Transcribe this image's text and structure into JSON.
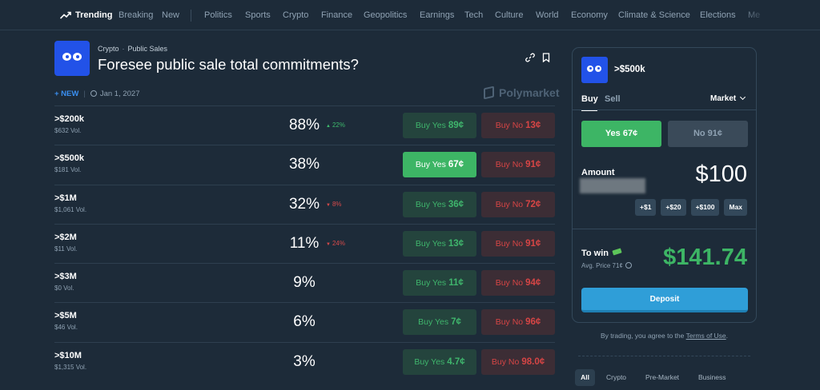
{
  "nav": {
    "trending": "Trending",
    "items": [
      "Breaking",
      "New",
      "Politics",
      "Sports",
      "Crypto",
      "Finance",
      "Geopolitics",
      "Earnings",
      "Tech",
      "Culture",
      "World",
      "Economy",
      "Climate & Science",
      "Elections",
      "Me"
    ]
  },
  "header": {
    "category": "Crypto",
    "subcategory": "Public Sales",
    "title": "Foresee public sale total commitments?",
    "new_badge": "+ NEW",
    "date": "Jan 1, 2027",
    "brand": "Polymarket"
  },
  "outcomes": [
    {
      "name": ">$200k",
      "volume": "$632 Vol.",
      "percent": "88%",
      "change": "22%",
      "change_dir": "up",
      "yes_label": "Buy Yes",
      "yes_price": "89¢",
      "no_label": "Buy No",
      "no_price": "13¢"
    },
    {
      "name": ">$500k",
      "volume": "$181 Vol.",
      "percent": "38%",
      "change": "",
      "change_dir": "",
      "yes_label": "Buy Yes",
      "yes_price": "67¢",
      "no_label": "Buy No",
      "no_price": "91¢"
    },
    {
      "name": ">$1M",
      "volume": "$1,061 Vol.",
      "percent": "32%",
      "change": "8%",
      "change_dir": "down",
      "yes_label": "Buy Yes",
      "yes_price": "36¢",
      "no_label": "Buy No",
      "no_price": "72¢"
    },
    {
      "name": ">$2M",
      "volume": "$11 Vol.",
      "percent": "11%",
      "change": "24%",
      "change_dir": "down",
      "yes_label": "Buy Yes",
      "yes_price": "13¢",
      "no_label": "Buy No",
      "no_price": "91¢"
    },
    {
      "name": ">$3M",
      "volume": "$0 Vol.",
      "percent": "9%",
      "change": "",
      "change_dir": "",
      "yes_label": "Buy Yes",
      "yes_price": "11¢",
      "no_label": "Buy No",
      "no_price": "94¢"
    },
    {
      "name": ">$5M",
      "volume": "$46 Vol.",
      "percent": "6%",
      "change": "",
      "change_dir": "",
      "yes_label": "Buy Yes",
      "yes_price": "7¢",
      "no_label": "Buy No",
      "no_price": "96¢"
    },
    {
      "name": ">$10M",
      "volume": "$1,315 Vol.",
      "percent": "3%",
      "change": "",
      "change_dir": "",
      "yes_label": "Buy Yes",
      "yes_price": "4.7¢",
      "no_label": "Buy No",
      "no_price": "98.0¢"
    }
  ],
  "selected_outcome_index": 1,
  "trade_panel": {
    "title": ">$500k",
    "tab_buy": "Buy",
    "tab_sell": "Sell",
    "order_type": "Market",
    "yes_button": "Yes 67¢",
    "no_button": "No 91¢",
    "amount_label": "Amount",
    "amount_value": "$100",
    "chips": [
      "+$1",
      "+$20",
      "+$100",
      "Max"
    ],
    "to_win_label": "To win",
    "avg_price": "Avg. Price 71¢",
    "to_win_value": "$141.74",
    "deposit_button": "Deposit"
  },
  "terms": {
    "prefix": "By trading, you agree to the",
    "link": "Terms of Use",
    "suffix": "."
  },
  "categories": [
    "All",
    "Crypto",
    "Pre-Market",
    "Business"
  ],
  "colors": {
    "background": "#1d2b39",
    "green": "#3db565",
    "red": "#d64545",
    "blue_logo": "#2252e8",
    "deposit": "#2f9ed8"
  }
}
